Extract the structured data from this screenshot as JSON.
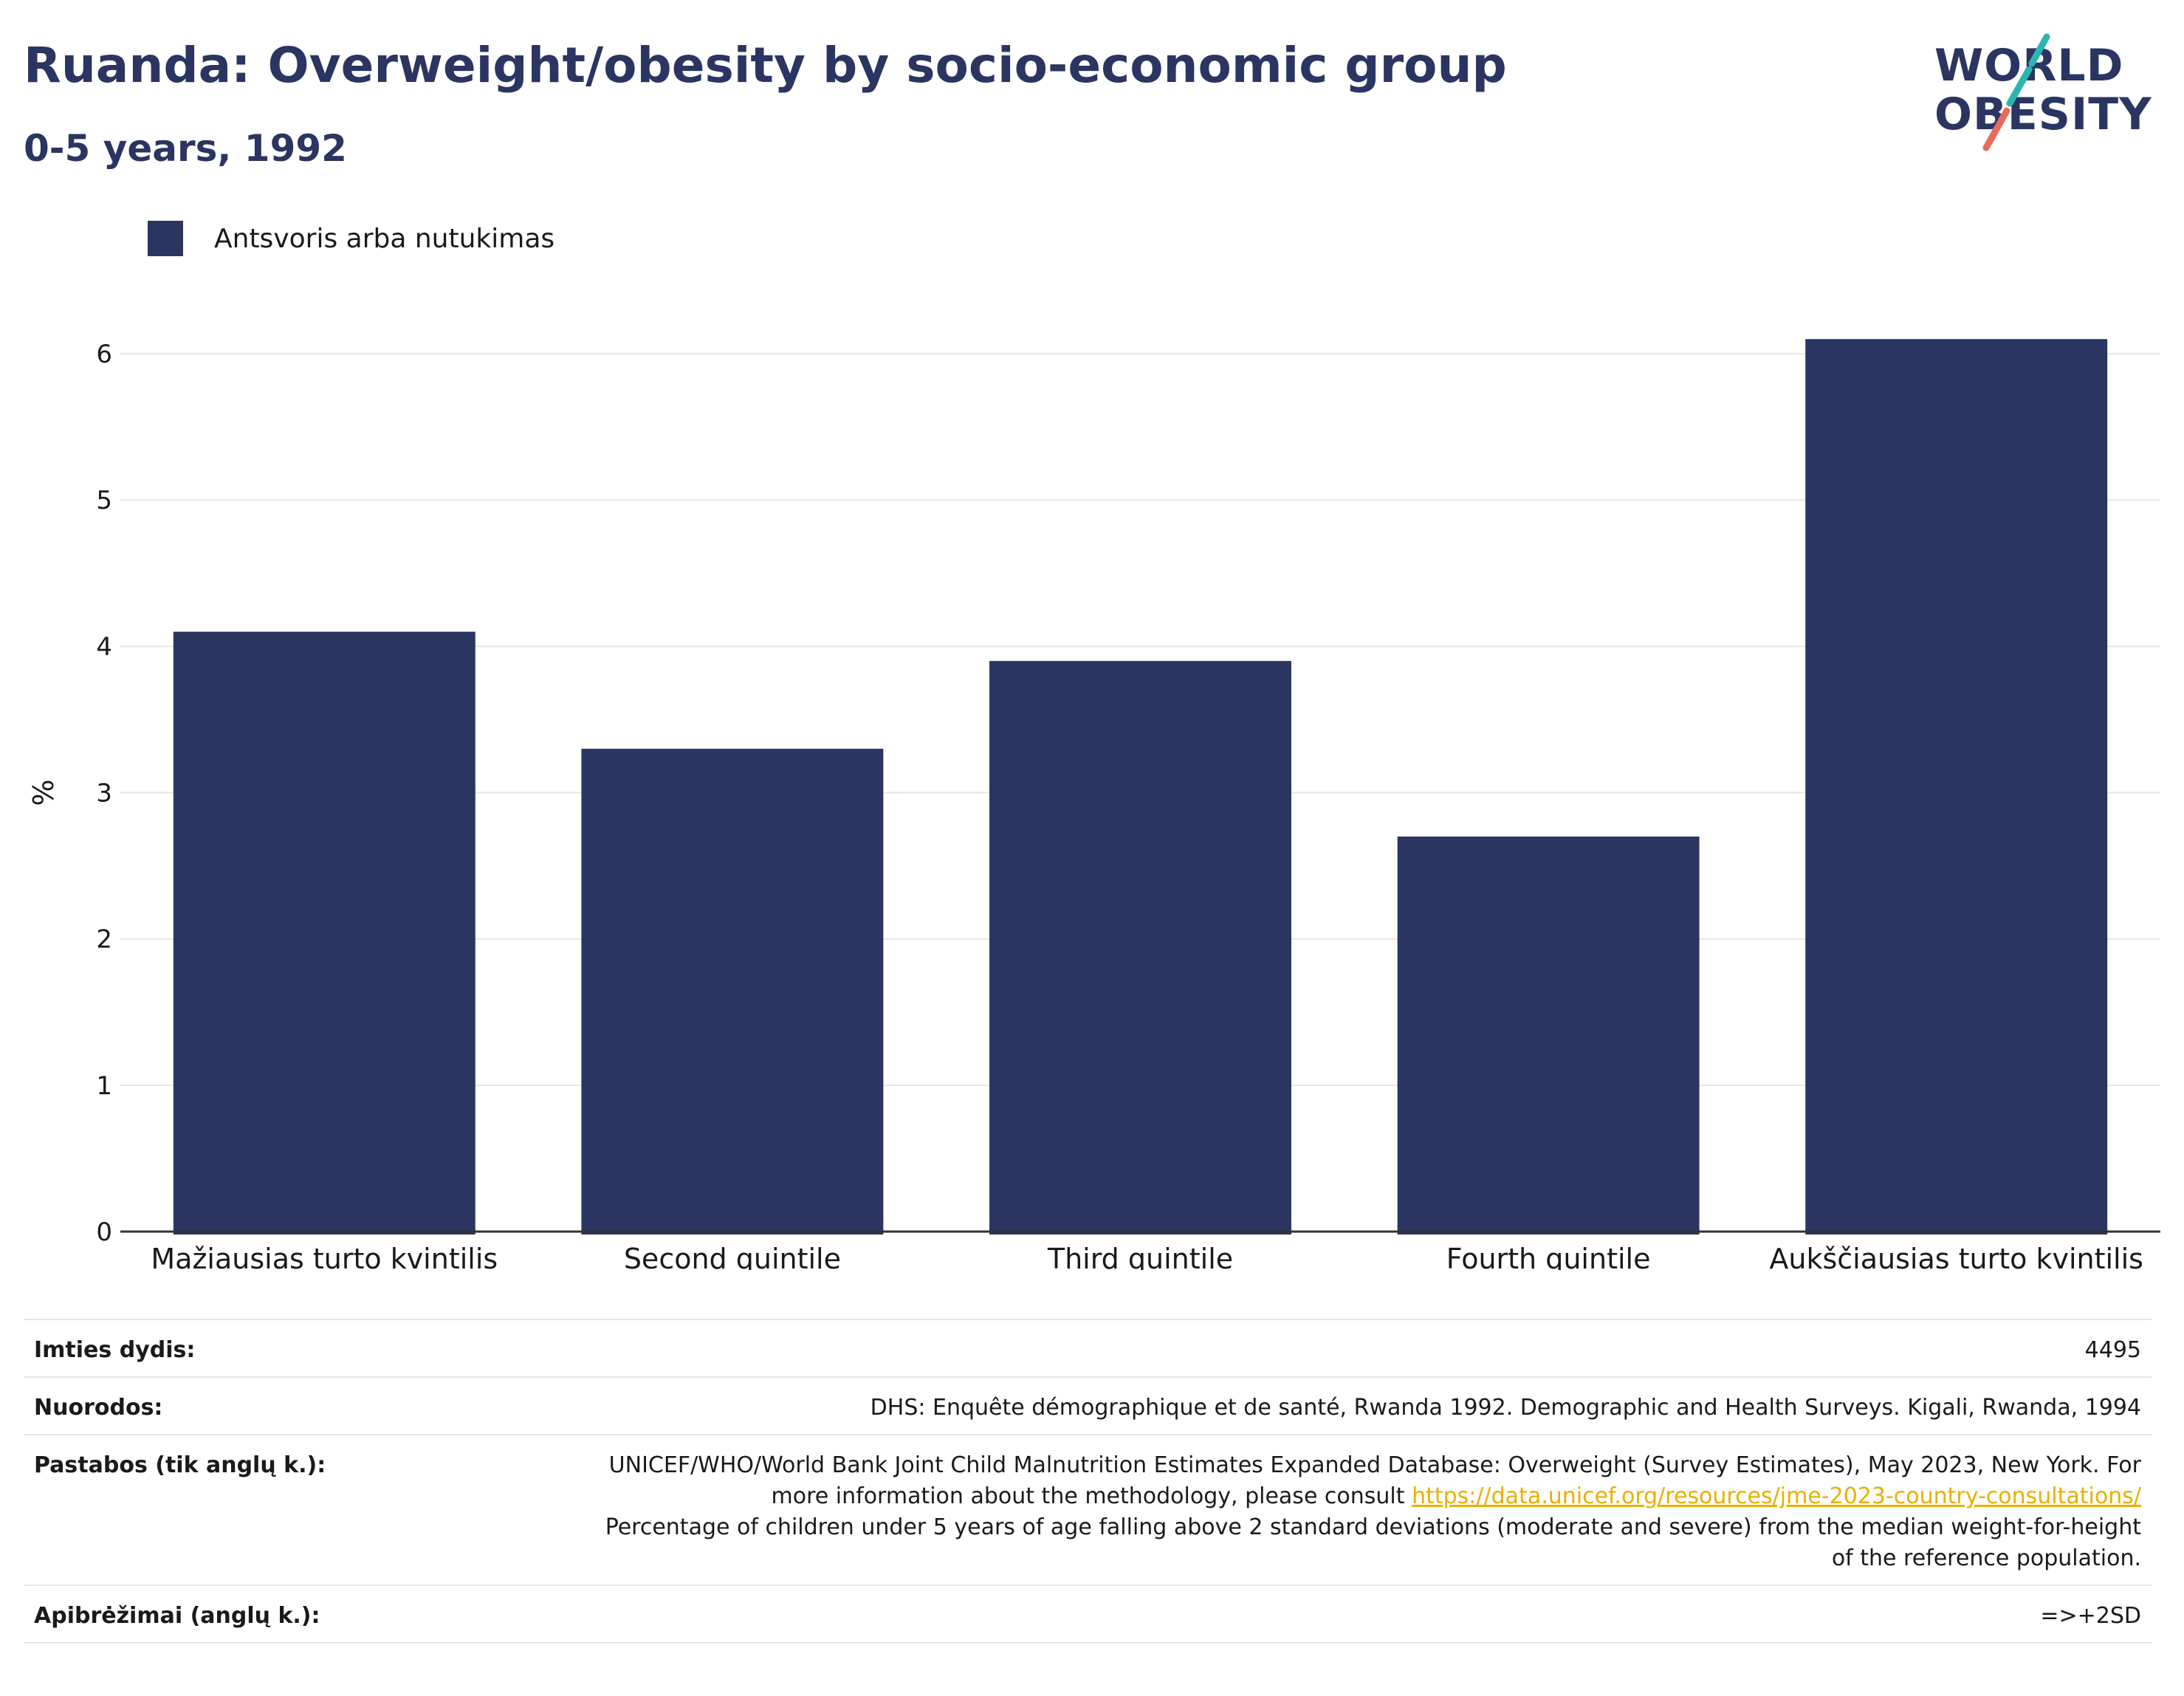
{
  "title": "Ruanda: Overweight/obesity by socio-economic group",
  "subtitle": "0-5 years, 1992",
  "logo": {
    "line1": "WORLD",
    "line2": "OBESITY"
  },
  "legend": {
    "label": "Antsvoris arba nutukimas",
    "color": "#2b3562"
  },
  "chart_data": {
    "type": "bar",
    "categories": [
      "Mažiausias turto kvintilis",
      "Second quintile",
      "Third quintile",
      "Fourth quintile",
      "Aukščiausias turto kvintilis"
    ],
    "series": [
      {
        "name": "Antsvoris arba nutukimas",
        "values": [
          4.1,
          3.3,
          3.9,
          2.7,
          6.1
        ]
      }
    ],
    "ylabel": "%",
    "ylim": [
      0,
      6.5
    ],
    "yticks": [
      0,
      1,
      2,
      3,
      4,
      5,
      6
    ],
    "grid": true,
    "legend_position": "top-left",
    "bar_color": "#2b3562"
  },
  "info": {
    "sample_label": "Imties dydis:",
    "sample_value": "4495",
    "references_label": "Nuorodos:",
    "references_value": "DHS: Enquête démographique et de santé, Rwanda 1992. Demographic and Health Surveys. Kigali, Rwanda, 1994",
    "notes_label": "Pastabos (tik anglų k.):",
    "notes_text_1": "UNICEF/WHO/World Bank Joint Child Malnutrition Estimates Expanded Database: Overweight (Survey Estimates), May 2023, New York. For more information about the methodology, please consult",
    "notes_link": "https://data.unicef.org/resources/jme-2023-country-consultations/",
    "notes_text_2": "Percentage of children under 5 years of age falling above 2 standard deviations (moderate and severe) from the median weight-for-height of the reference population.",
    "definitions_label": "Apibrėžimai (anglų k.):",
    "definitions_value": "=>+2SD"
  }
}
